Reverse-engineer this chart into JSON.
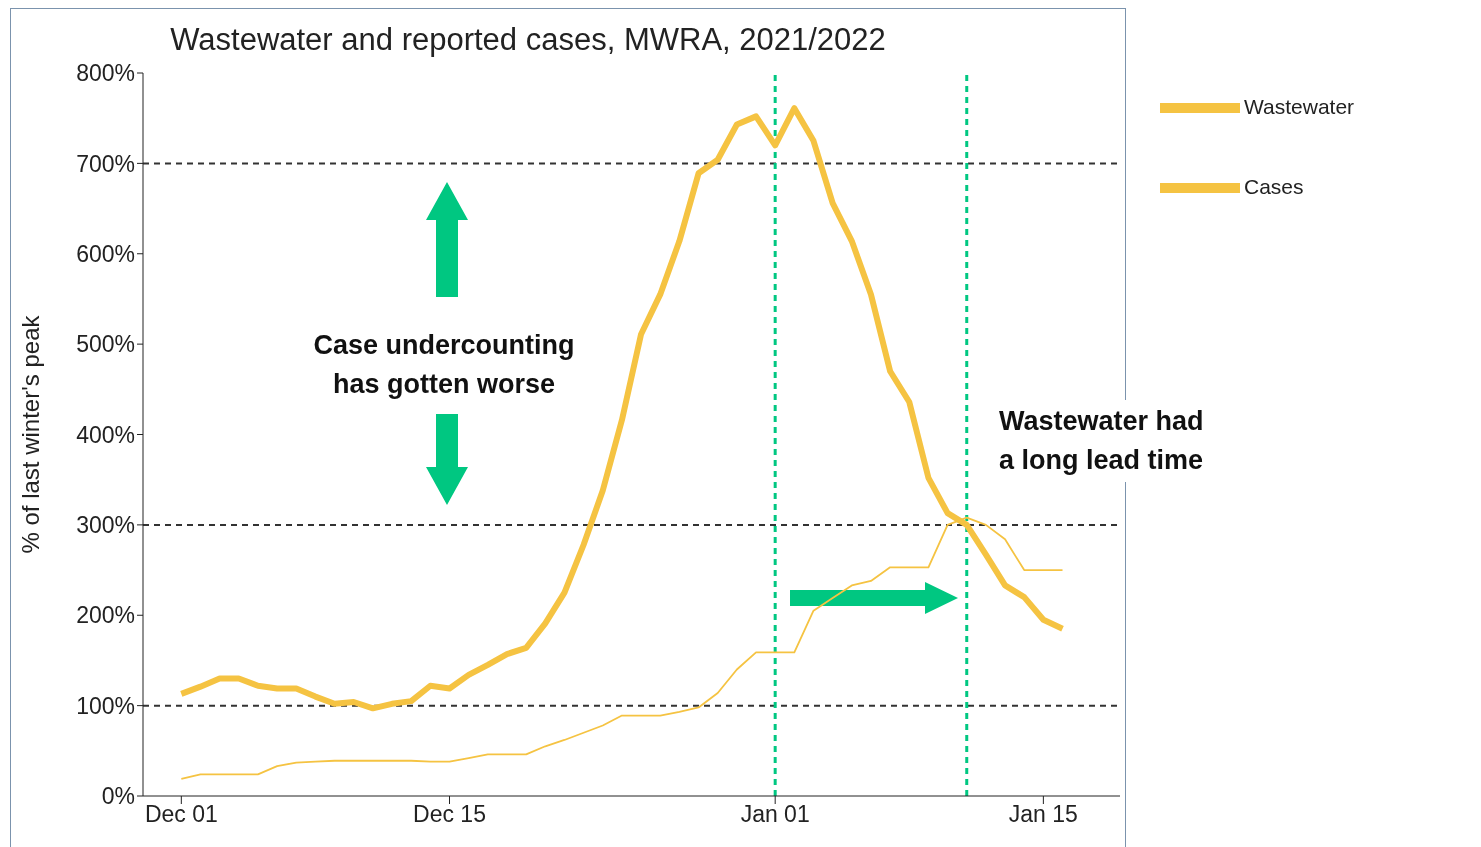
{
  "chart_data": {
    "type": "line",
    "title": "Wastewater and reported cases, MWRA, 2021/2022",
    "ylabel": "% of last winter's peak",
    "x": [
      "2021-12-01",
      "2021-12-02",
      "2021-12-03",
      "2021-12-04",
      "2021-12-05",
      "2021-12-06",
      "2021-12-07",
      "2021-12-08",
      "2021-12-09",
      "2021-12-10",
      "2021-12-11",
      "2021-12-12",
      "2021-12-13",
      "2021-12-14",
      "2021-12-15",
      "2021-12-16",
      "2021-12-17",
      "2021-12-18",
      "2021-12-19",
      "2021-12-20",
      "2021-12-21",
      "2021-12-22",
      "2021-12-23",
      "2021-12-24",
      "2021-12-25",
      "2021-12-26",
      "2021-12-27",
      "2021-12-28",
      "2021-12-29",
      "2021-12-30",
      "2021-12-31",
      "2022-01-01",
      "2022-01-02",
      "2022-01-03",
      "2022-01-04",
      "2022-01-05",
      "2022-01-06",
      "2022-01-07",
      "2022-01-08",
      "2022-01-09",
      "2022-01-10",
      "2022-01-11",
      "2022-01-12",
      "2022-01-13",
      "2022-01-14",
      "2022-01-15",
      "2022-01-16"
    ],
    "series": [
      {
        "name": "Wastewater",
        "color": "#f5c342",
        "values": [
          113,
          121,
          130,
          130,
          122,
          119,
          119,
          110,
          102,
          104,
          97,
          102,
          105,
          122,
          119,
          134,
          145,
          157,
          164,
          191,
          225,
          278,
          338,
          416,
          511,
          555,
          614,
          689,
          704,
          743,
          752,
          720,
          761,
          725,
          656,
          614,
          555,
          470,
          436,
          352,
          313,
          300,
          267,
          233,
          220,
          195,
          185
        ]
      },
      {
        "name": "Cases",
        "color": "#f5c342",
        "values": [
          19,
          24,
          24,
          24,
          24,
          33,
          37,
          38,
          39,
          39,
          39,
          39,
          39,
          38,
          38,
          42,
          46,
          46,
          46,
          55,
          62,
          70,
          78,
          89,
          89,
          89,
          93,
          98,
          114,
          140,
          159,
          159,
          159,
          205,
          219,
          233,
          238,
          253,
          253,
          253,
          300,
          308,
          300,
          284,
          250,
          250,
          250
        ]
      }
    ],
    "xlim": [
      "2021-11-29",
      "2022-01-19"
    ],
    "xticks": [
      {
        "value": "2021-12-01",
        "label": "Dec 01"
      },
      {
        "value": "2021-12-15",
        "label": "Dec 15"
      },
      {
        "value": "2022-01-01",
        "label": "Jan 01"
      },
      {
        "value": "2022-01-15",
        "label": "Jan 15"
      }
    ],
    "ylim": [
      0,
      800
    ],
    "yticks": [
      {
        "value": 0,
        "label": "0%"
      },
      {
        "value": 100,
        "label": "100%"
      },
      {
        "value": 200,
        "label": "200%"
      },
      {
        "value": 300,
        "label": "300%"
      },
      {
        "value": 400,
        "label": "400%"
      },
      {
        "value": 500,
        "label": "500%"
      },
      {
        "value": 600,
        "label": "600%"
      },
      {
        "value": 700,
        "label": "700%"
      },
      {
        "value": 800,
        "label": "800%"
      }
    ],
    "ref_lines": [
      {
        "axis": "y",
        "value": 100,
        "color": "#333333",
        "line_style": "dashed"
      },
      {
        "axis": "y",
        "value": 300,
        "color": "#333333",
        "line_style": "dashed"
      },
      {
        "axis": "y",
        "value": 700,
        "color": "#333333",
        "line_style": "dashed"
      },
      {
        "axis": "x",
        "value": "2022-01-01",
        "color": "#00c781",
        "line_style": "dashed"
      },
      {
        "axis": "x",
        "value": "2022-01-11",
        "color": "#00c781",
        "line_style": "dashed"
      }
    ],
    "annotations": [
      "Case undercounting has gotten worse",
      "Wastewater had a long lead time"
    ],
    "legend": "top right",
    "line_style": "solid"
  }
}
